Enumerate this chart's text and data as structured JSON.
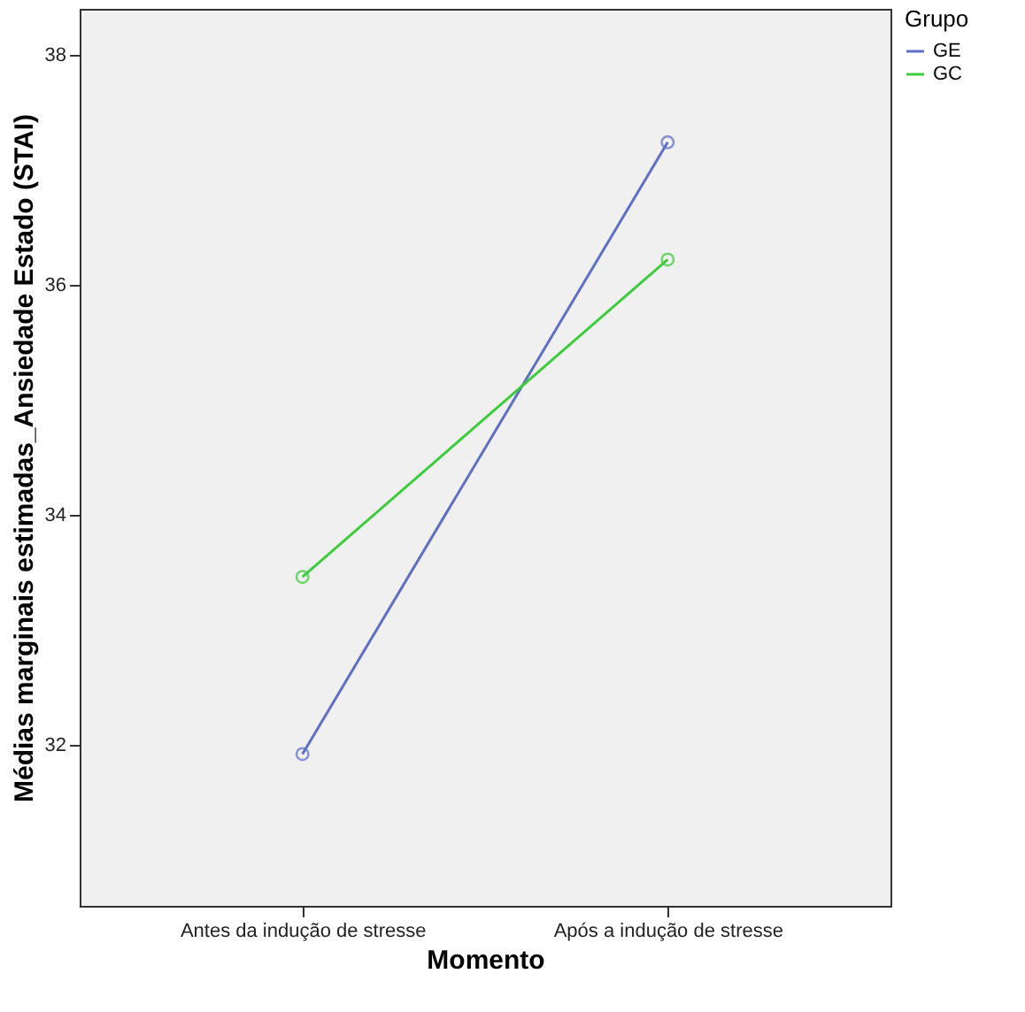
{
  "chart_data": {
    "type": "line",
    "xlabel": "Momento",
    "ylabel": "Médias marginais estimadas_Ansiedade Estado (STAI)",
    "legend_title": "Grupo",
    "categories": [
      "Antes da indução de stresse",
      "Após a indução de stresse"
    ],
    "series": [
      {
        "name": "GE",
        "color": "#5e6fc4",
        "values": [
          31.92,
          37.24
        ]
      },
      {
        "name": "GC",
        "color": "#3ccc3c",
        "values": [
          33.46,
          36.22
        ]
      }
    ],
    "ylim": [
      30.6,
      38.4
    ],
    "yticks": [
      32,
      34,
      36,
      38
    ],
    "grid": false,
    "legend": "top right",
    "marker": "circle",
    "line_style": "solid"
  }
}
